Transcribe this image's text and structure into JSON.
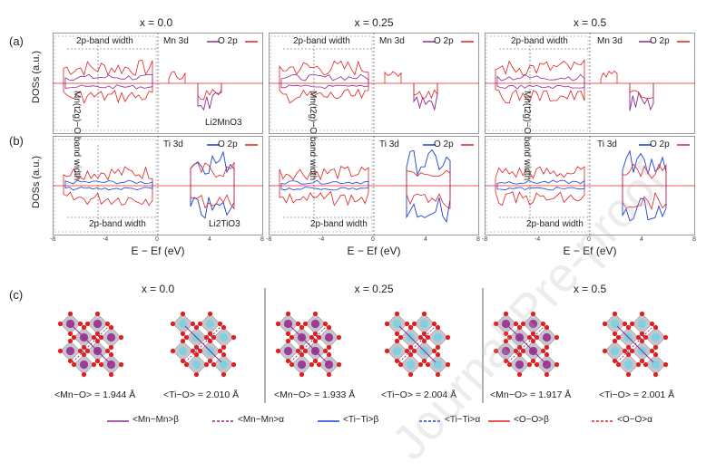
{
  "panels": {
    "a": "(a)",
    "b": "(b)",
    "c": "(c)"
  },
  "columns": [
    {
      "x_label": "x = 0.0",
      "mn_o": "<Mn−O> = 1.944 Å",
      "ti_o": "<Ti−O> = 2.010 Å"
    },
    {
      "x_label": "x = 0.25",
      "mn_o": "<Mn−O> = 1.933 Å",
      "ti_o": "<Ti−O> = 2.004 Å"
    },
    {
      "x_label": "x = 0.5",
      "mn_o": "<Mn−O> = 1.917 Å",
      "ti_o": "<Ti−O> = 2.001 Å"
    }
  ],
  "y_axis_label": "DOSs (a.u.)",
  "x_axis_label": "E − Ef (eV)",
  "x_ticks": [
    "-8",
    "-4",
    "0",
    "4",
    "8"
  ],
  "annotations": {
    "band_width": "2p-band width",
    "mn_band": "Mn(t2g)−O band width",
    "legend_mn": "Mn 3d",
    "legend_ti": "Ti 3d",
    "legend_o": "O 2p",
    "compound_a": "Li2MnO3",
    "compound_b": "Li2TiO3"
  },
  "bottom_legend": [
    {
      "label": "<Mn−Mn>β",
      "color": "#8b2a8f",
      "dash": false
    },
    {
      "label": "<Mn−Mn>α",
      "color": "#8b2a8f",
      "dash": true
    },
    {
      "label": "<Ti−Ti>β",
      "color": "#1a3fd6",
      "dash": false
    },
    {
      "label": "<Ti−Ti>α",
      "color": "#1a3fd6",
      "dash": true
    },
    {
      "label": "<O−O>β",
      "color": "#e02020",
      "dash": false
    },
    {
      "label": "<O−O>α",
      "color": "#e02020",
      "dash": true
    }
  ],
  "watermark": "Journal Pre-proof",
  "colors": {
    "mn": "#8b2a8f",
    "ti": "#1a3fd6",
    "o": "#e02020",
    "ti_atom": "#7fd0e0",
    "mn_atom": "#a03a9a"
  }
}
